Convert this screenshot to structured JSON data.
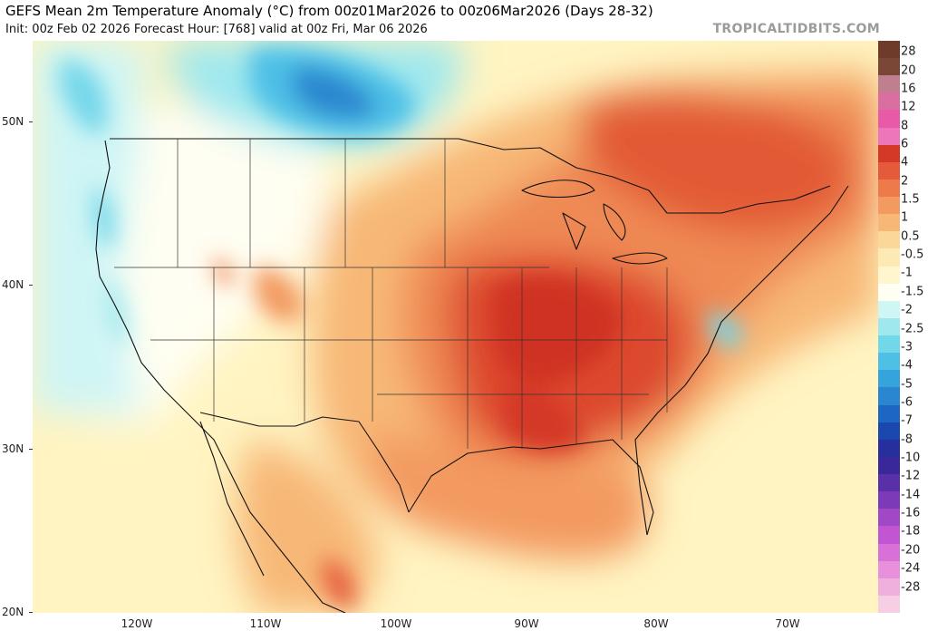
{
  "header": {
    "title": "GEFS Mean 2m Temperature Anomaly (°C) from 00z01Mar2026 to 00z06Mar2026 (Days 28-32)",
    "subtitle": "Init: 00z Feb 02 2026    Forecast Hour: [768]    valid at 00z Fri, Mar 06 2026",
    "brand": "TROPICALTIDBITS.COM"
  },
  "axes": {
    "lat_labels": [
      "50N",
      "40N",
      "30N",
      "20N"
    ],
    "lon_labels": [
      "120W",
      "110W",
      "100W",
      "90W",
      "80W",
      "70W"
    ]
  },
  "colorbar": {
    "labels": [
      "28",
      "20",
      "16",
      "12",
      "8",
      "6",
      "4",
      "2",
      "1.5",
      "1",
      "0.5",
      "-0.5",
      "-1",
      "-1.5",
      "-2",
      "-2.5",
      "-3",
      "-4",
      "-5",
      "-6",
      "-7",
      "-8",
      "-10",
      "-12",
      "-14",
      "-16",
      "-18",
      "-20",
      "-24",
      "-28"
    ],
    "colors": [
      "#6e3b2a",
      "#7a4736",
      "#c07f8e",
      "#d86fa0",
      "#e85aa8",
      "#ec76b7",
      "#d43826",
      "#e45a3a",
      "#ee7a4c",
      "#f39a60",
      "#f7b877",
      "#fbd79a",
      "#fde9b4",
      "#fff6cf",
      "#fffef2",
      "#cff5f5",
      "#9fe8ee",
      "#73d7ea",
      "#4ec0e6",
      "#35a4dc",
      "#2a87cf",
      "#1d66c2",
      "#1a48ae",
      "#262f9b",
      "#3a2799",
      "#5a30a8",
      "#7d3ab8",
      "#a048c5",
      "#c256d2",
      "#d870d8",
      "#e890dc",
      "#f0b0de",
      "#f6cfe5"
    ]
  }
}
